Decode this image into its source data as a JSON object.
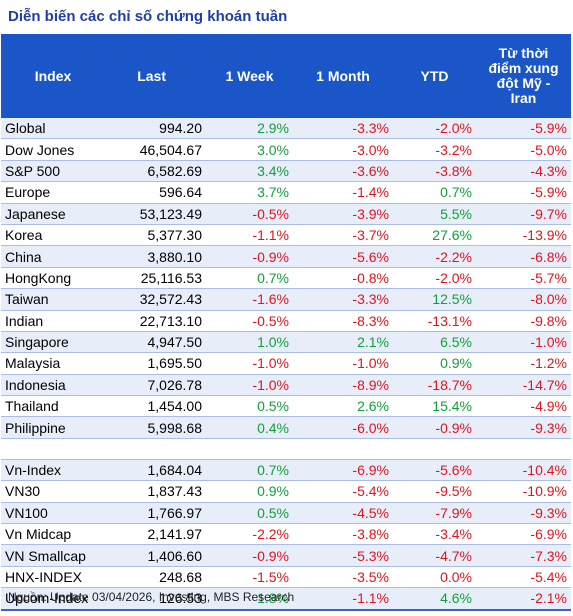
{
  "title": "Diễn biến các chỉ số chứng khoán tuần",
  "headers": {
    "index": "Index",
    "last": "Last",
    "week": "1 Week",
    "month": "1 Month",
    "ytd": "YTD",
    "since_line1": "Từ thời",
    "since_line2": "điểm xung",
    "since_line3": "đột Mỹ -",
    "since_line4": "Iran"
  },
  "group1": [
    {
      "name": "Global",
      "last": "994.20",
      "week": "2.9%",
      "month": "-3.3%",
      "ytd": "-2.0%",
      "since": "-5.9%"
    },
    {
      "name": "Dow Jones",
      "last": "46,504.67",
      "week": "3.0%",
      "month": "-3.0%",
      "ytd": "-3.2%",
      "since": "-5.0%"
    },
    {
      "name": "S&P 500",
      "last": "6,582.69",
      "week": "3.4%",
      "month": "-3.6%",
      "ytd": "-3.8%",
      "since": "-4.3%"
    },
    {
      "name": "Europe",
      "last": "596.64",
      "week": "3.7%",
      "month": "-1.4%",
      "ytd": "0.7%",
      "since": "-5.9%"
    },
    {
      "name": "Japanese",
      "last": "53,123.49",
      "week": "-0.5%",
      "month": "-3.9%",
      "ytd": "5.5%",
      "since": "-9.7%"
    },
    {
      "name": "Korea",
      "last": "5,377.30",
      "week": "-1.1%",
      "month": "-3.7%",
      "ytd": "27.6%",
      "since": "-13.9%"
    },
    {
      "name": "China",
      "last": "3,880.10",
      "week": "-0.9%",
      "month": "-5.6%",
      "ytd": "-2.2%",
      "since": "-6.8%"
    },
    {
      "name": "HongKong",
      "last": "25,116.53",
      "week": "0.7%",
      "month": "-0.8%",
      "ytd": "-2.0%",
      "since": "-5.7%"
    },
    {
      "name": "Taiwan",
      "last": "32,572.43",
      "week": "-1.6%",
      "month": "-3.3%",
      "ytd": "12.5%",
      "since": "-8.0%"
    },
    {
      "name": "Indian",
      "last": "22,713.10",
      "week": "-0.5%",
      "month": "-8.3%",
      "ytd": "-13.1%",
      "since": "-9.8%"
    },
    {
      "name": "Singapore",
      "last": "4,947.50",
      "week": "1.0%",
      "month": "2.1%",
      "ytd": "6.5%",
      "since": "-1.0%"
    },
    {
      "name": "Malaysia",
      "last": "1,695.50",
      "week": "-1.0%",
      "month": "-1.0%",
      "ytd": "0.9%",
      "since": "-1.2%"
    },
    {
      "name": "Indonesia",
      "last": "7,026.78",
      "week": "-1.0%",
      "month": "-8.9%",
      "ytd": "-18.7%",
      "since": "-14.7%"
    },
    {
      "name": "Thailand",
      "last": "1,454.00",
      "week": "0.5%",
      "month": "2.6%",
      "ytd": "15.4%",
      "since": "-4.9%"
    },
    {
      "name": "Philippine",
      "last": "5,998.68",
      "week": "0.4%",
      "month": "-6.0%",
      "ytd": "-0.9%",
      "since": "-9.3%"
    }
  ],
  "group2": [
    {
      "name": "Vn-Index",
      "last": "1,684.04",
      "week": "0.7%",
      "month": "-6.9%",
      "ytd": "-5.6%",
      "since": "-10.4%"
    },
    {
      "name": "VN30",
      "last": "1,837.43",
      "week": "0.9%",
      "month": "-5.4%",
      "ytd": "-9.5%",
      "since": "-10.9%"
    },
    {
      "name": "VN100",
      "last": "1,766.97",
      "week": "0.5%",
      "month": "-4.5%",
      "ytd": "-7.9%",
      "since": "-9.3%"
    },
    {
      "name": "Vn Midcap",
      "last": "2,141.97",
      "week": "-2.2%",
      "month": "-3.8%",
      "ytd": "-3.4%",
      "since": "-6.9%"
    },
    {
      "name": "VN Smallcap",
      "last": "1,406.60",
      "week": "-0.9%",
      "month": "-5.3%",
      "ytd": "-4.7%",
      "since": "-7.3%"
    },
    {
      "name": "HNX-INDEX",
      "last": "248.68",
      "week": "-1.5%",
      "month": "-3.5%",
      "ytd": "0.0%",
      "since": "-5.4%"
    },
    {
      "name": "Upcom-Index",
      "last": "126.53",
      "week": "1.8%",
      "month": "-1.1%",
      "ytd": "4.6%",
      "since": "-2.1%"
    }
  ],
  "source": "Nguồn: Update  03/04/2026, Investing, MBS Research"
}
